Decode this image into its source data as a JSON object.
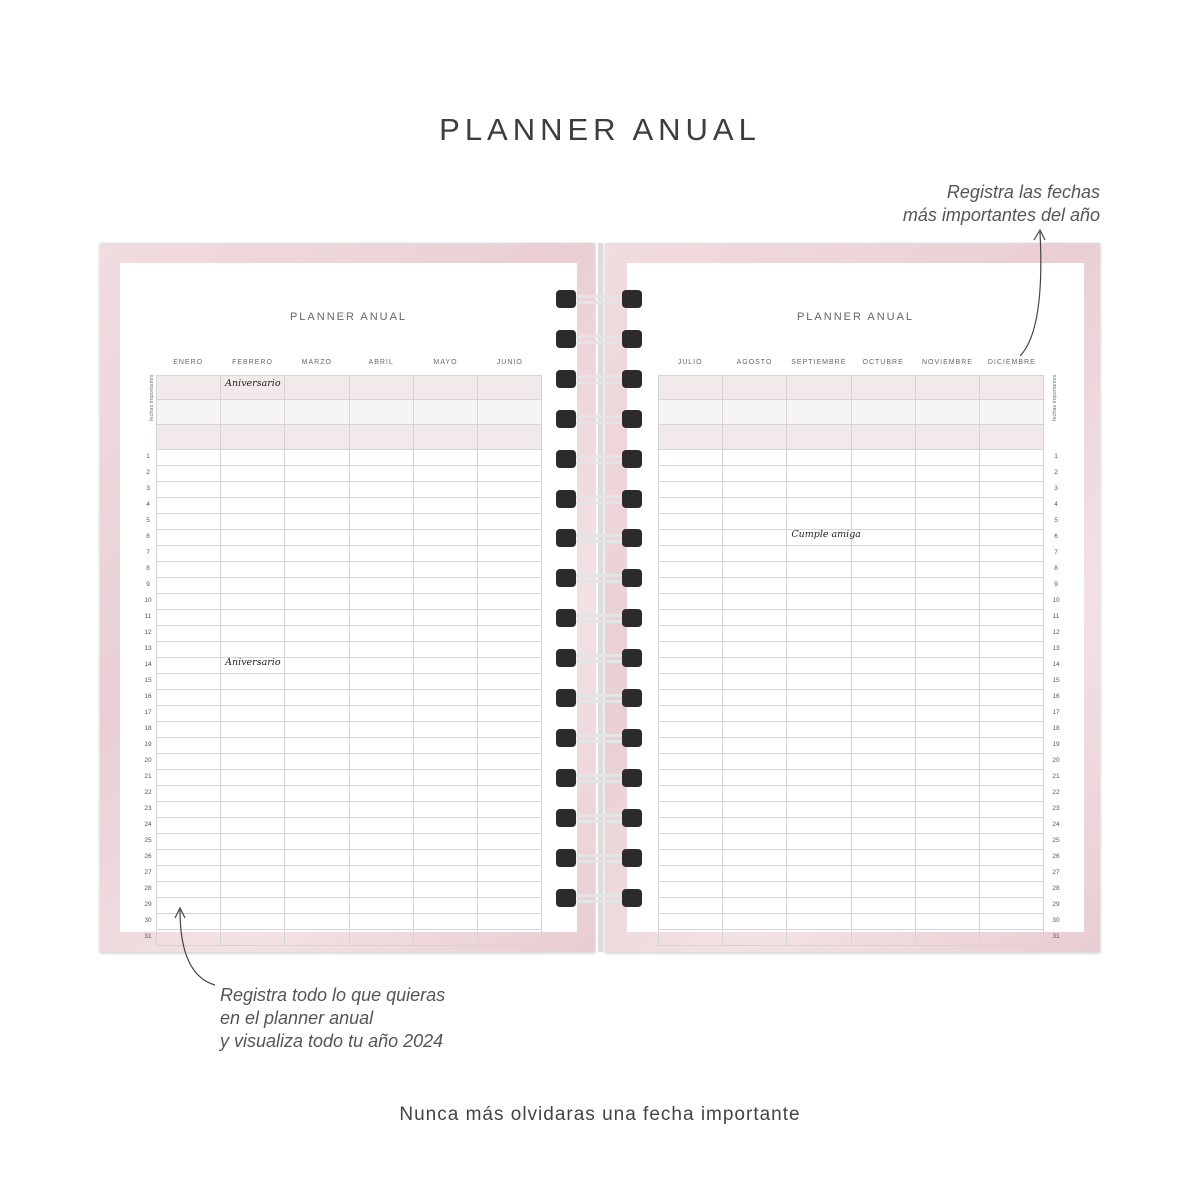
{
  "header": {
    "title": "PLANNER ANUAL"
  },
  "notes": {
    "top_line1": "Registra las fechas",
    "top_line2": "más importantes del año",
    "bottom_line1": "Registra todo lo que quieras",
    "bottom_line2": "en el planner anual",
    "bottom_line3": "y visualiza todo tu año 2024"
  },
  "footer": "Nunca más olvidaras una fecha importante",
  "left_page": {
    "title": "PLANNER ANUAL",
    "months": [
      "ENERO",
      "FEBRERO",
      "MARZO",
      "ABRIL",
      "MAYO",
      "JUNIO"
    ],
    "side_label": "fechas importantes",
    "entries": [
      {
        "row": "header-1",
        "month": "FEBRERO",
        "text": "Aniversario"
      },
      {
        "row": "14",
        "month": "FEBRERO",
        "text": "Aniversario"
      }
    ]
  },
  "right_page": {
    "title": "PLANNER ANUAL",
    "months": [
      "JULIO",
      "AGOSTO",
      "SEPTIEMBRE",
      "OCTUBRE",
      "NOVIEMBRE",
      "DICIEMBRE"
    ],
    "side_label": "fechas importantes",
    "entries": [
      {
        "row": "6",
        "month": "SEPTIEMBRE",
        "text": "Cumple amiga"
      }
    ]
  },
  "days": [
    "1",
    "2",
    "3",
    "4",
    "5",
    "6",
    "7",
    "8",
    "9",
    "10",
    "11",
    "12",
    "13",
    "14",
    "15",
    "16",
    "17",
    "18",
    "19",
    "20",
    "21",
    "22",
    "23",
    "24",
    "25",
    "26",
    "27",
    "28",
    "29",
    "30",
    "31"
  ],
  "colors": {
    "page_border": "#ecd4d8",
    "header_row": "#f2eaea",
    "ring": "#2b2b2b"
  }
}
